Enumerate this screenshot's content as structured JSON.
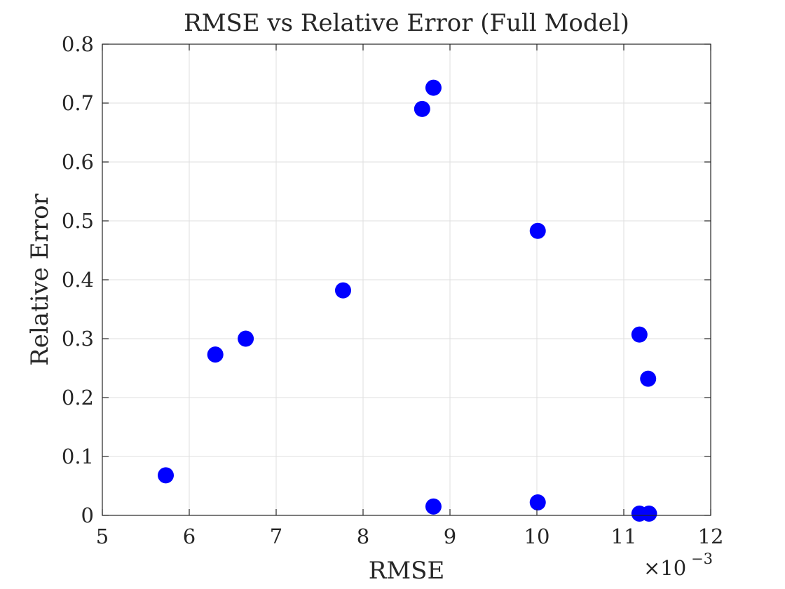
{
  "chart_data": {
    "type": "scatter",
    "title": "RMSE vs Relative Error (Full Model)",
    "xlabel": "RMSE",
    "ylabel": "Relative Error",
    "x_exponent_label": "×10",
    "x_exponent_power": "−3",
    "xlim": [
      5,
      12
    ],
    "ylim": [
      0,
      0.8
    ],
    "xticks": [
      5,
      6,
      7,
      8,
      9,
      10,
      11,
      12
    ],
    "xtick_labels": [
      "5",
      "6",
      "7",
      "8",
      "9",
      "10",
      "11",
      "12"
    ],
    "yticks": [
      0,
      0.1,
      0.2,
      0.3,
      0.4,
      0.5,
      0.6,
      0.7,
      0.8
    ],
    "ytick_labels": [
      "0",
      "0.1",
      "0.2",
      "0.3",
      "0.4",
      "0.5",
      "0.6",
      "0.7",
      "0.8"
    ],
    "grid": true,
    "marker_color": "#0000ff",
    "series": [
      {
        "points": [
          {
            "x": 5.73,
            "y": 0.068
          },
          {
            "x": 6.3,
            "y": 0.273
          },
          {
            "x": 6.65,
            "y": 0.3
          },
          {
            "x": 7.77,
            "y": 0.382
          },
          {
            "x": 8.68,
            "y": 0.69
          },
          {
            "x": 8.81,
            "y": 0.726
          },
          {
            "x": 8.81,
            "y": 0.015
          },
          {
            "x": 10.01,
            "y": 0.483
          },
          {
            "x": 10.01,
            "y": 0.022
          },
          {
            "x": 11.18,
            "y": 0.307
          },
          {
            "x": 11.28,
            "y": 0.232
          },
          {
            "x": 11.18,
            "y": 0.003
          },
          {
            "x": 11.29,
            "y": 0.003
          }
        ]
      }
    ]
  }
}
